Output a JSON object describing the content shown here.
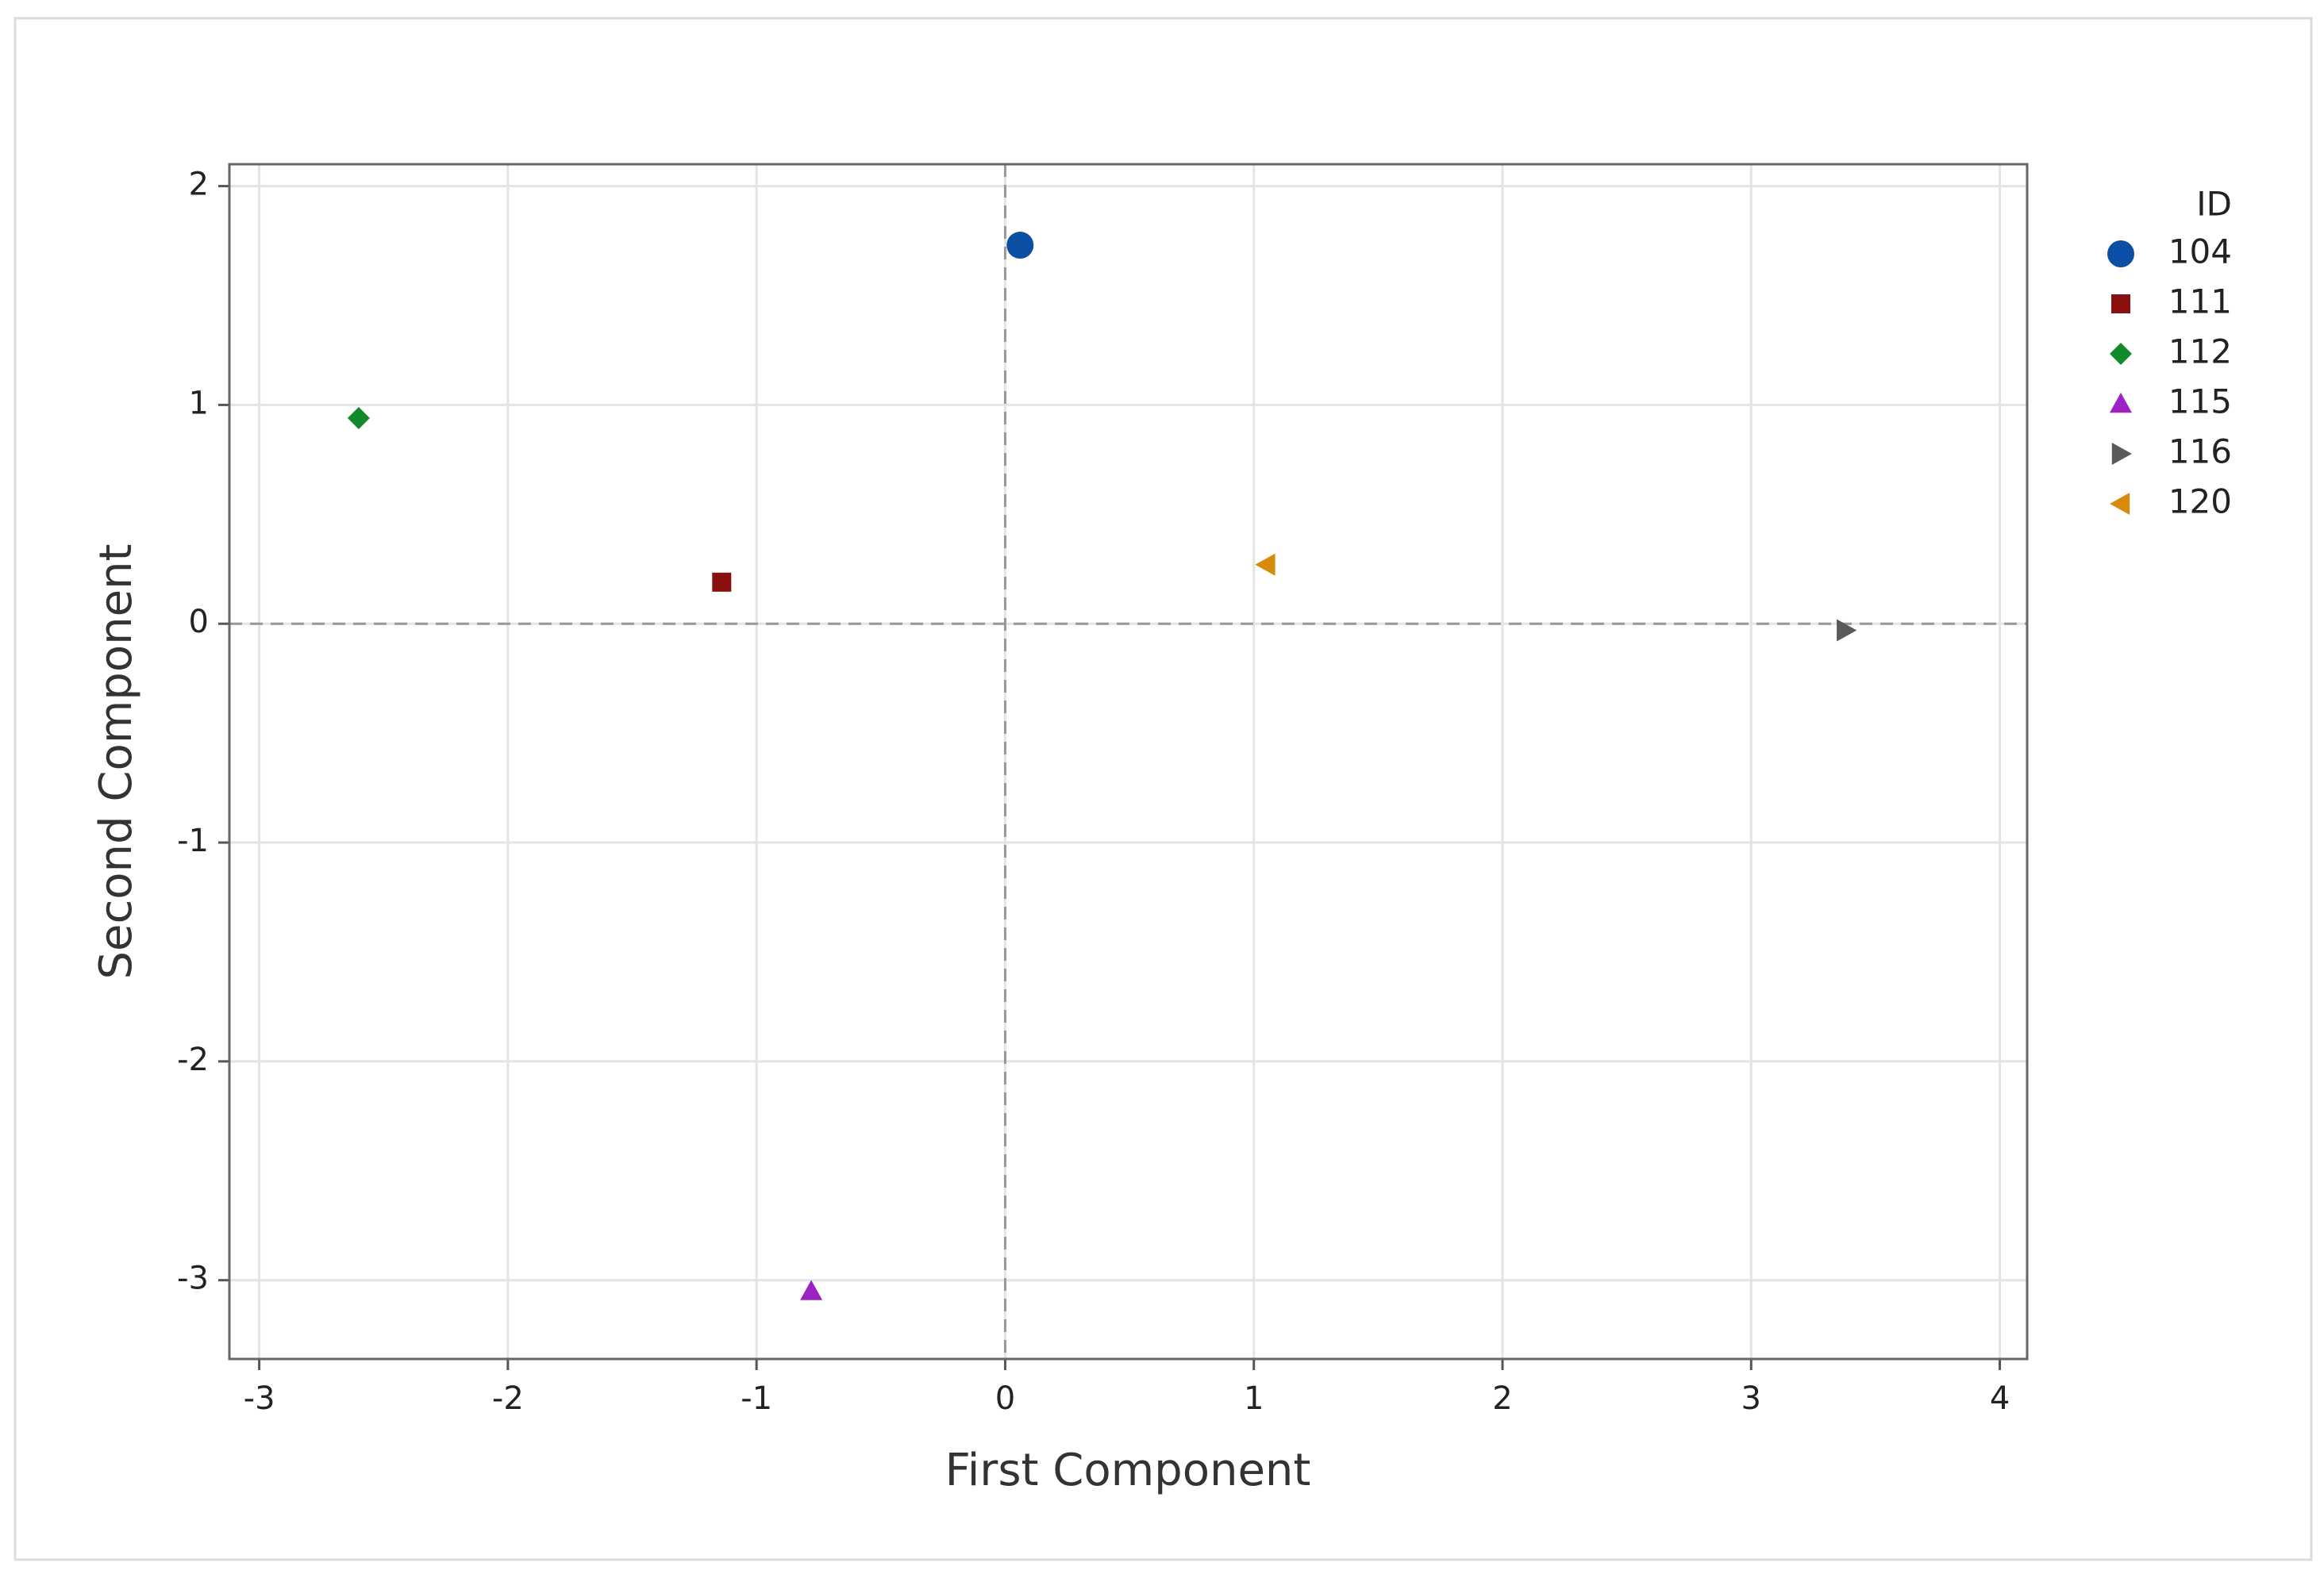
{
  "chart_data": {
    "type": "scatter",
    "x_label": "First Component",
    "y_label": "Second Component",
    "legend_title": "ID",
    "legend": "right",
    "xlim": [
      -3.12,
      4.11
    ],
    "ylim": [
      -3.36,
      2.1
    ],
    "xticks": [
      -3,
      -2,
      -1,
      0,
      1,
      2,
      3,
      4
    ],
    "yticks": [
      -3,
      -2,
      -1,
      0,
      1,
      2
    ],
    "grid": true,
    "reference_lines": {
      "x": 0,
      "y": 0
    },
    "series": [
      {
        "name": "104",
        "color": "#0a4fa3",
        "marker": "circle",
        "x": [
          0.06
        ],
        "values": [
          1.73
        ]
      },
      {
        "name": "111",
        "color": "#8b1111",
        "marker": "square",
        "x": [
          -1.14
        ],
        "values": [
          0.19
        ]
      },
      {
        "name": "112",
        "color": "#13892b",
        "marker": "diamond",
        "x": [
          -2.6
        ],
        "values": [
          0.94
        ]
      },
      {
        "name": "115",
        "color": "#9d22c4",
        "marker": "triangle-up",
        "x": [
          -0.78
        ],
        "values": [
          -3.05
        ]
      },
      {
        "name": "116",
        "color": "#5a5a5a",
        "marker": "triangle-right",
        "x": [
          3.38
        ],
        "values": [
          -0.03
        ]
      },
      {
        "name": "120",
        "color": "#d88a0a",
        "marker": "triangle-left",
        "x": [
          1.05
        ],
        "values": [
          0.27
        ]
      }
    ]
  }
}
